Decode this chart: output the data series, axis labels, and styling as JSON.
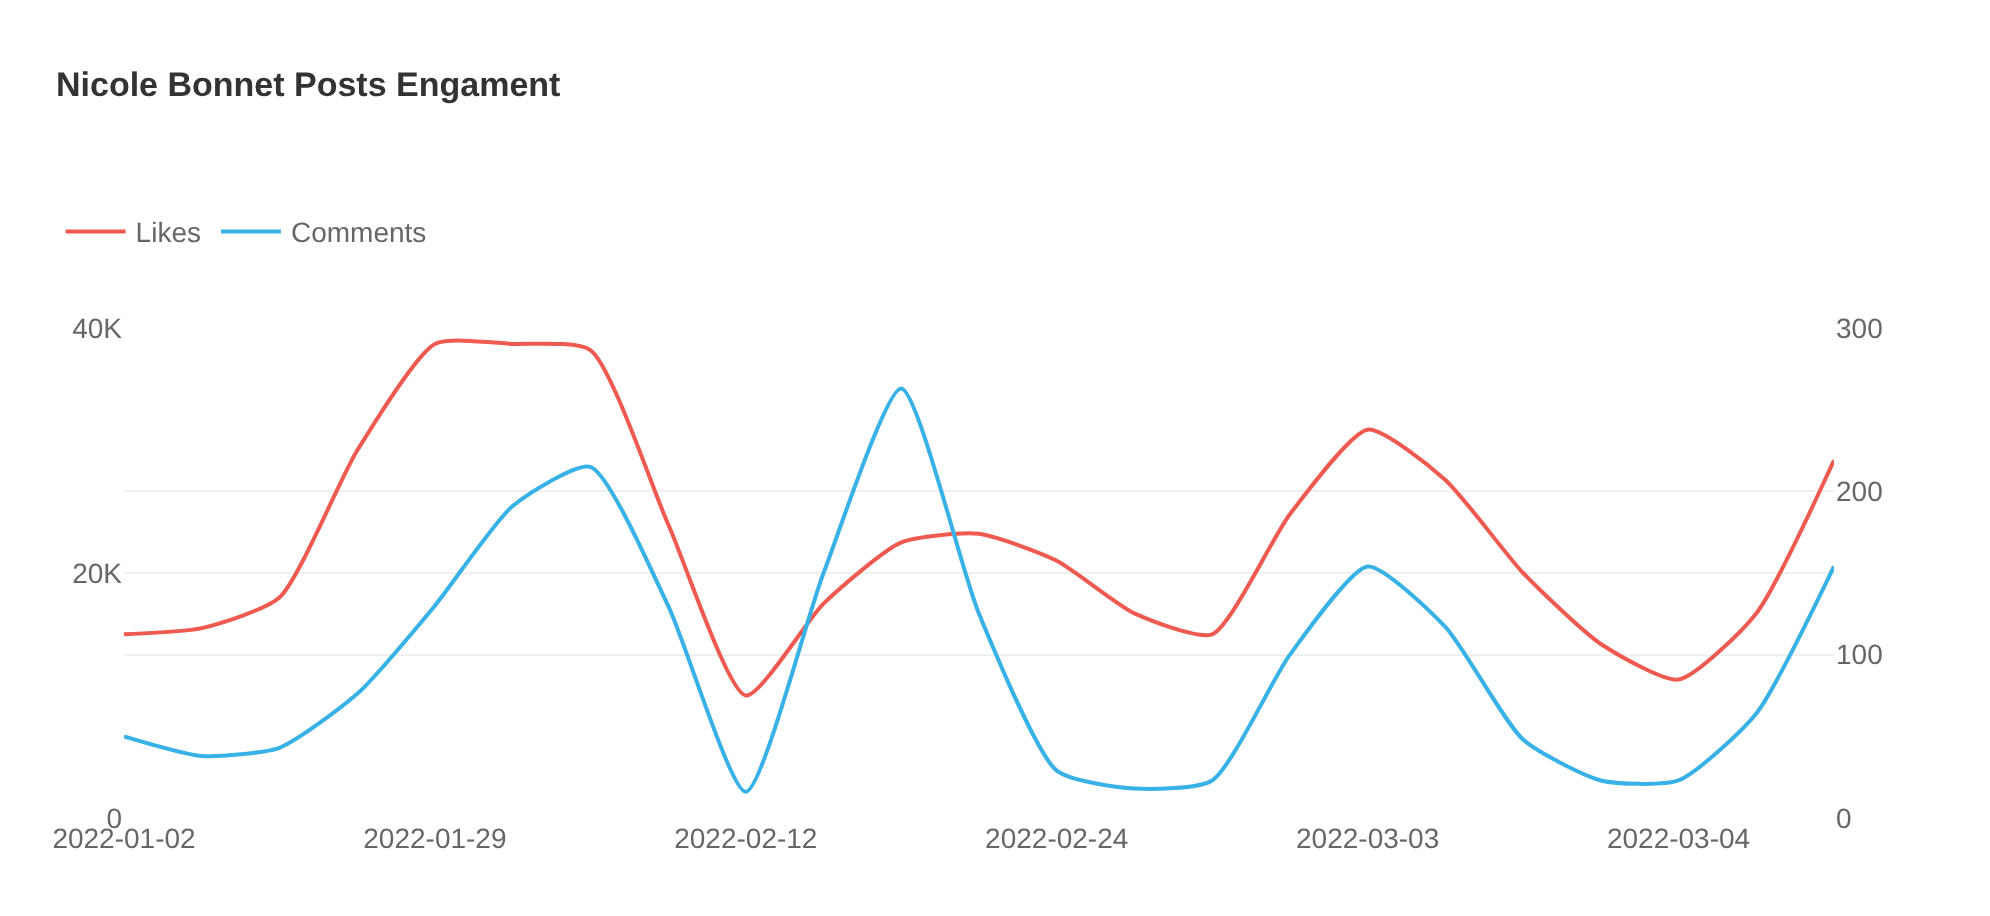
{
  "chart_data": {
    "type": "line",
    "title": "Nicole Bonnet Posts Engament",
    "categories": [
      "2022-01-02",
      null,
      null,
      null,
      "2022-01-29",
      null,
      null,
      null,
      "2022-02-12",
      null,
      null,
      null,
      "2022-02-24",
      null,
      null,
      null,
      "2022-03-03",
      null,
      null,
      null,
      "2022-03-04",
      null,
      null
    ],
    "series": [
      {
        "name": "Likes",
        "color": "#ee5a4f",
        "values": [
          15000,
          15500,
          18000,
          30000,
          38700,
          38700,
          38200,
          24000,
          10000,
          17500,
          22500,
          23200,
          21000,
          16700,
          15000,
          24800,
          31700,
          27600,
          20000,
          14200,
          11300,
          16700,
          29200
        ]
      },
      {
        "name": "Comments",
        "color": "#38b2e6",
        "axis": "y2",
        "values": [
          50,
          38,
          43,
          76,
          130,
          191,
          215,
          130,
          16,
          150,
          263,
          125,
          29,
          18,
          23,
          100,
          154,
          117,
          48,
          23,
          23,
          64,
          154
        ]
      }
    ],
    "ylim": [
      0,
      40000
    ],
    "yticks": [
      0,
      {
        "value": 20000,
        "label": "20K"
      },
      {
        "value": 40000,
        "label": "40K"
      }
    ],
    "y2lim": [
      0,
      300
    ],
    "y2ticks": [
      0,
      100,
      200,
      300
    ],
    "grid": true,
    "legend": "top left",
    "marker": "none",
    "line_style": "solid"
  }
}
